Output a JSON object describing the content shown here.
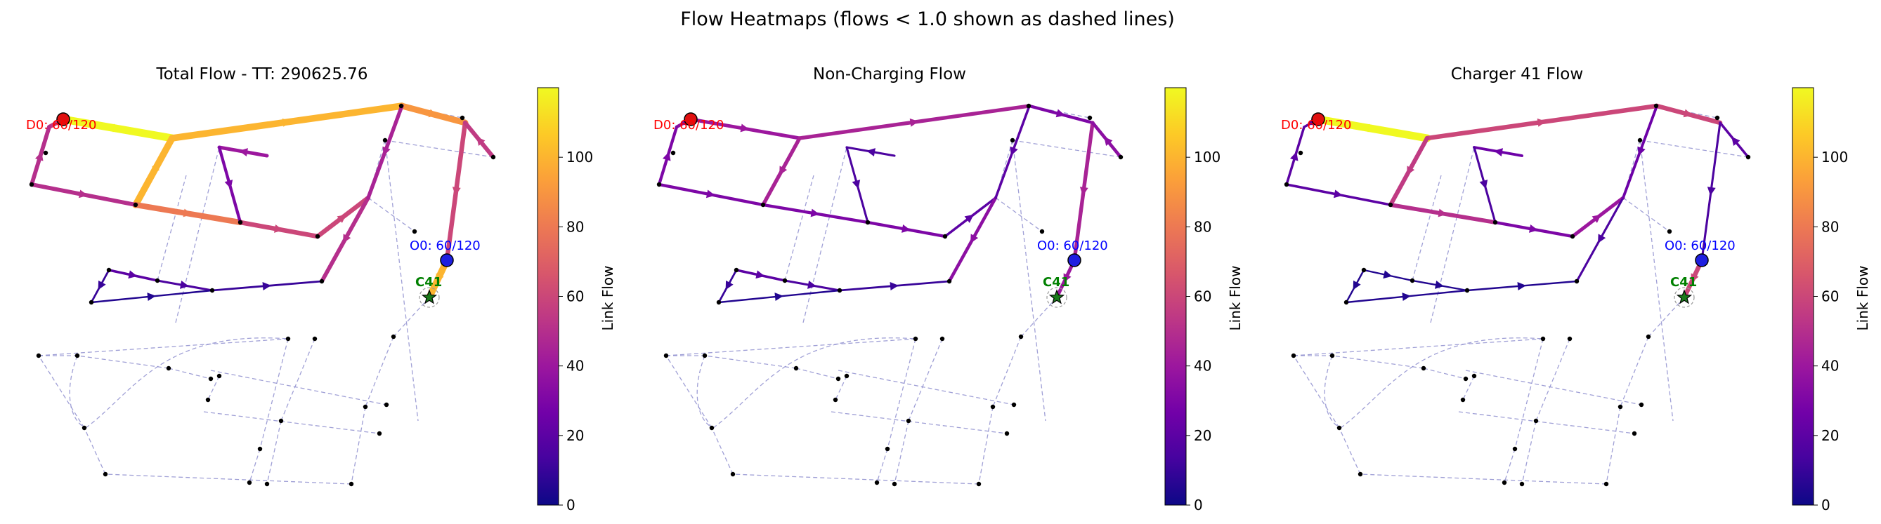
{
  "figure": {
    "suptitle": "Flow Heatmaps (flows < 1.0 shown as dashed lines)"
  },
  "colormap": [
    "#0d0887",
    "#46039f",
    "#7201a8",
    "#9c179e",
    "#bd3786",
    "#d8576b",
    "#ed7953",
    "#fb9f3a",
    "#fdca26",
    "#f0f921"
  ],
  "colors": {
    "origin_fill": "#1f1fe0",
    "destination_fill": "#e01010",
    "charger_fill": "#1a7a1a",
    "origin_text": "#0000ff",
    "destination_text": "#ff0000",
    "charger_text": "#008000",
    "dashed_link": "#8888cc"
  },
  "chart_data": [
    {
      "type": "network-heatmap",
      "title": "Total Flow - TT: 290625.76",
      "colorbar": {
        "label": "Link Flow",
        "ticks": [
          0,
          20,
          40,
          60,
          80,
          100
        ],
        "range": [
          0,
          120
        ]
      },
      "labels": {
        "origin": "O0: 60/120",
        "destination": "D0: 60/120",
        "charger": "C41"
      },
      "edge_flows": [
        120,
        100,
        100,
        90,
        80,
        60,
        60,
        60,
        55,
        55,
        50,
        50,
        50,
        45,
        40,
        30,
        20,
        15,
        10,
        10,
        5,
        100
      ]
    },
    {
      "type": "network-heatmap",
      "title": "Non-Charging Flow",
      "colorbar": {
        "label": "Link Flow",
        "ticks": [
          0,
          20,
          40,
          60,
          80,
          100
        ],
        "range": [
          0,
          120
        ]
      },
      "labels": {
        "origin": "O0: 60/120",
        "destination": "D0: 60/120",
        "charger": "C41"
      },
      "edge_flows": [
        40,
        45,
        45,
        30,
        30,
        30,
        20,
        45,
        35,
        35,
        30,
        30,
        35,
        20,
        15,
        15,
        20,
        15,
        10,
        10,
        5,
        40
      ]
    },
    {
      "type": "network-heatmap",
      "title": "Charger 41 Flow",
      "colorbar": {
        "label": "Link Flow",
        "ticks": [
          0,
          20,
          40,
          60,
          80,
          100
        ],
        "range": [
          0,
          120
        ]
      },
      "labels": {
        "origin": "O0: 60/120",
        "destination": "D0: 60/120",
        "charger": "C41"
      },
      "edge_flows": [
        120,
        60,
        55,
        60,
        50,
        30,
        40,
        15,
        20,
        20,
        20,
        20,
        15,
        25,
        25,
        15,
        5,
        5,
        5,
        5,
        5,
        60
      ]
    }
  ]
}
